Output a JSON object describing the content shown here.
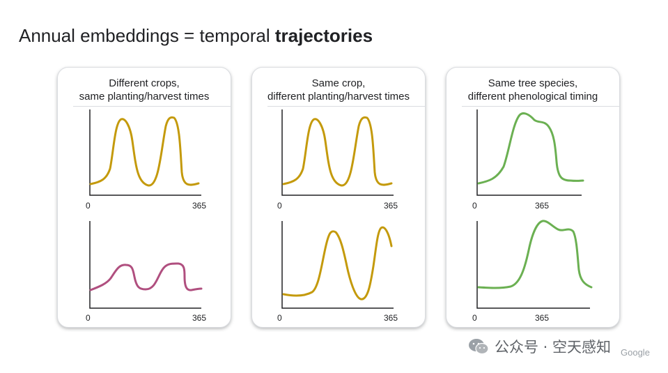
{
  "slide": {
    "title_regular": "Annual embeddings = temporal ",
    "title_bold": "trajectories"
  },
  "colors": {
    "crop_yellow": "#C49A0C",
    "crop_magenta": "#B04F7F",
    "tree_green": "#6BB052",
    "axis": "#202124"
  },
  "panels": [
    {
      "title_line1": "Different crops,",
      "title_line2": "same planting/harvest times",
      "plots": [
        {
          "x_min_label": "0",
          "x_max_label": "365",
          "curve": "yellow-double-peak"
        },
        {
          "x_min_label": "0",
          "x_max_label": "365",
          "curve": "magenta-double-peak"
        }
      ]
    },
    {
      "title_line1": "Same crop,",
      "title_line2": "different planting/harvest times",
      "plots": [
        {
          "x_min_label": "0",
          "x_max_label": "365",
          "curve": "yellow-double-peak"
        },
        {
          "x_min_label": "0",
          "x_max_label": "365",
          "curve": "yellow-shifted-double-peak"
        }
      ]
    },
    {
      "title_line1": "Same tree species,",
      "title_line2": "different phenological timing",
      "plots": [
        {
          "x_min_label": "0",
          "x_max_label": "365",
          "curve": "green-early-plateau"
        },
        {
          "x_min_label": "0",
          "x_max_label": "365",
          "curve": "green-late-plateau"
        }
      ]
    }
  ],
  "watermark": {
    "text": "公众号 · 空天感知",
    "icon": "wechat-icon"
  },
  "brand": {
    "text": "Google"
  }
}
